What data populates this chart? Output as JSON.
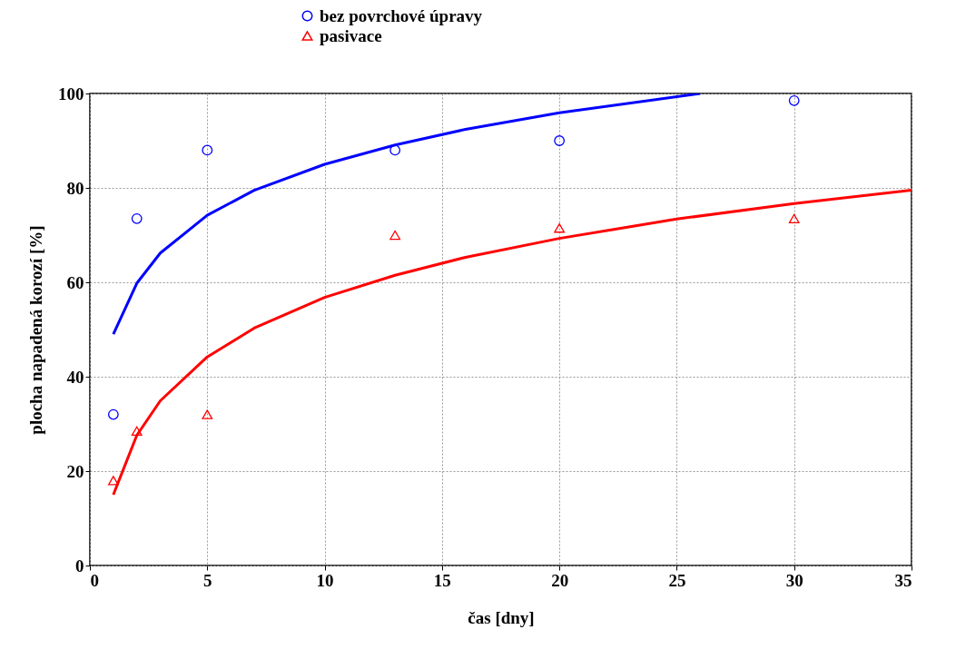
{
  "chart_data": {
    "type": "scatter",
    "xlabel": "čas [dny]",
    "ylabel": "plocha  napadená  korozí  [%]",
    "xlim": [
      0,
      35
    ],
    "xticks": [
      0,
      5,
      10,
      15,
      20,
      25,
      30,
      35
    ],
    "ylim": [
      0,
      100
    ],
    "yticks": [
      0,
      20,
      40,
      60,
      80,
      100
    ],
    "grid": true,
    "legend": "top",
    "series": [
      {
        "name": "bez povrchové úpravy",
        "marker": "circle",
        "color": "#0000ff",
        "x": [
          1,
          2,
          5,
          13,
          20,
          30
        ],
        "values": [
          32,
          73.5,
          88,
          88,
          90,
          98.5
        ]
      },
      {
        "name": "pasivace",
        "marker": "triangle",
        "color": "#ff0000",
        "x": [
          1,
          2,
          5,
          13,
          20,
          30
        ],
        "values": [
          18,
          28.5,
          32,
          70,
          71.5,
          73.5
        ]
      },
      {
        "type": "line",
        "color": "#0000ff",
        "x": [
          1,
          2,
          3,
          5,
          7,
          10,
          13,
          16,
          20,
          26
        ],
        "values": [
          49,
          59.8,
          66.2,
          74.2,
          79.5,
          85,
          89.1,
          92.4,
          95.9,
          100
        ]
      },
      {
        "type": "line",
        "color": "#ff0000",
        "x": [
          1,
          2,
          3,
          5,
          7,
          10,
          13,
          16,
          20,
          25,
          30,
          35
        ],
        "values": [
          15,
          27.6,
          34.9,
          44.2,
          50.3,
          56.8,
          61.5,
          65.3,
          69.3,
          73.4,
          76.7,
          79.5
        ]
      }
    ]
  }
}
